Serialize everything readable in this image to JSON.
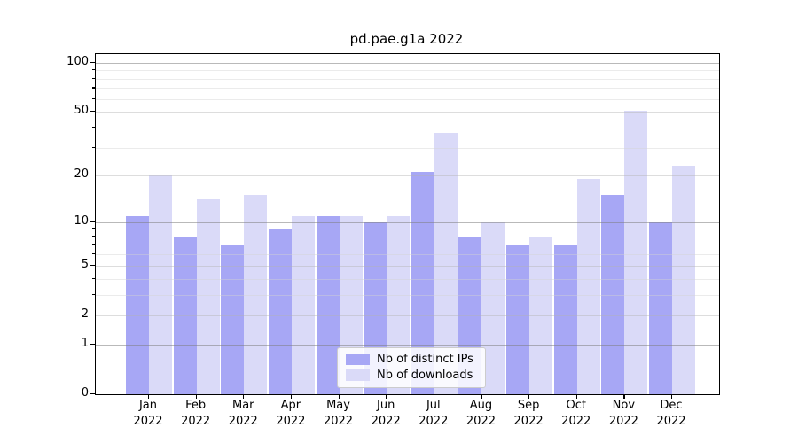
{
  "title": "pd.pae.g1a 2022",
  "chart_data": {
    "type": "bar",
    "scale": "log1p",
    "title": "pd.pae.g1a 2022",
    "categories": [
      "Jan",
      "Feb",
      "Mar",
      "Apr",
      "May",
      "Jun",
      "Jul",
      "Aug",
      "Sep",
      "Oct",
      "Nov",
      "Dec"
    ],
    "year_label": "2022",
    "series": [
      {
        "name": "Nb of distinct IPs",
        "color": "#a7a7f5",
        "values": [
          11,
          8,
          7,
          9,
          11,
          10,
          21,
          8,
          7,
          7,
          15,
          10
        ]
      },
      {
        "name": "Nb of downloads",
        "color": "#dadaf8",
        "values": [
          20,
          14,
          15,
          11,
          11,
          11,
          37,
          10,
          8,
          19,
          51,
          23
        ]
      }
    ],
    "y_ticks": [
      0,
      1,
      2,
      5,
      10,
      20,
      50,
      100
    ],
    "ylim": [
      0,
      113
    ],
    "gridlines": {
      "decade": [
        1,
        10,
        100
      ],
      "labeled": [
        2,
        5,
        20,
        50
      ],
      "minor": [
        3,
        4,
        6,
        7,
        8,
        9,
        30,
        40,
        60,
        70,
        80,
        90
      ]
    },
    "legend_entries": [
      "Nb of distinct IPs",
      "Nb of downloads"
    ],
    "legend_position": "lower center inside",
    "grid": true,
    "xlabel": "",
    "ylabel": ""
  }
}
